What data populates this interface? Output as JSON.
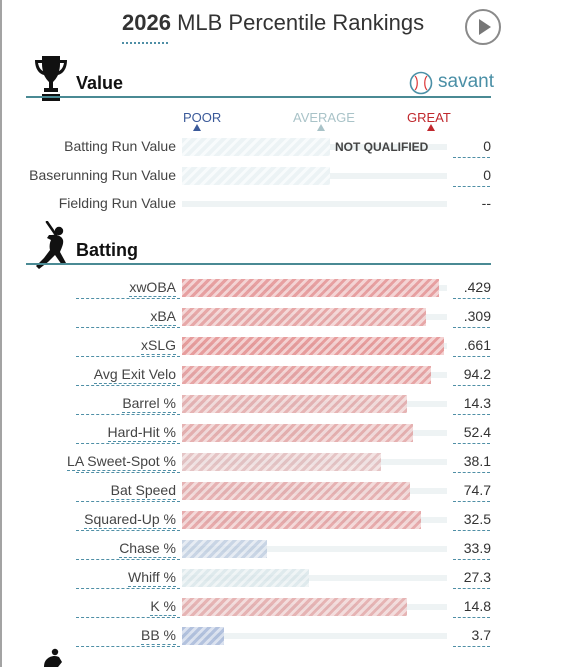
{
  "header": {
    "year": "2026",
    "title": "MLB Percentile Rankings"
  },
  "value_section": {
    "title": "Value",
    "brand": "savant",
    "scale": {
      "poor": "POOR",
      "average": "AVERAGE",
      "great": "GREAT"
    },
    "not_qualified": "NOT QUALIFIED",
    "metrics": [
      {
        "label": "Batting Run Value",
        "value": "0"
      },
      {
        "label": "Baserunning Run Value",
        "value": "0"
      },
      {
        "label": "Fielding Run Value",
        "value": "--"
      }
    ]
  },
  "batting_section": {
    "title": "Batting",
    "metrics": [
      {
        "label": "xwOBA",
        "value": ".429",
        "percentile": 97
      },
      {
        "label": "xBA",
        "value": ".309",
        "percentile": 92
      },
      {
        "label": "xSLG",
        "value": ".661",
        "percentile": 99
      },
      {
        "label": "Avg Exit Velo",
        "value": "94.2",
        "percentile": 94
      },
      {
        "label": "Barrel %",
        "value": "14.3",
        "percentile": 85
      },
      {
        "label": "Hard-Hit %",
        "value": "52.4",
        "percentile": 87
      },
      {
        "label": "LA Sweet-Spot %",
        "value": "38.1",
        "percentile": 75
      },
      {
        "label": "Bat Speed",
        "value": "74.7",
        "percentile": 86
      },
      {
        "label": "Squared-Up %",
        "value": "32.5",
        "percentile": 90
      },
      {
        "label": "Chase %",
        "value": "33.9",
        "percentile": 32
      },
      {
        "label": "Whiff %",
        "value": "27.3",
        "percentile": 48
      },
      {
        "label": "K %",
        "value": "14.8",
        "percentile": 85
      },
      {
        "label": "BB %",
        "value": "3.7",
        "percentile": 16
      }
    ]
  },
  "colors": {
    "great": "#e07b7b",
    "average": "#d9e6e8",
    "poor": "#7d93c9",
    "accent": "#4a8a94"
  }
}
